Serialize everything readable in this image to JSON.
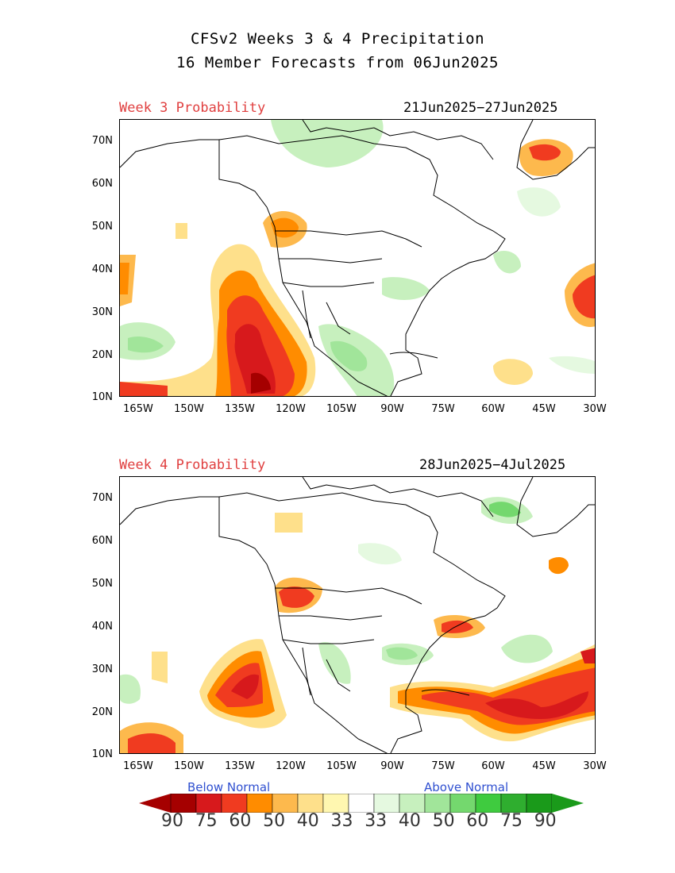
{
  "title": {
    "line1": "CFSv2 Weeks 3 & 4 Precipitation",
    "line2": "16 Member Forecasts from 06Jun2025"
  },
  "panels": [
    {
      "label": "Week 3 Probability",
      "dates": "21Jun2025−27Jun2025"
    },
    {
      "label": "Week 4 Probability",
      "dates": "28Jun2025−4Jul2025"
    }
  ],
  "axes": {
    "lat_labels": [
      "70N",
      "60N",
      "50N",
      "40N",
      "30N",
      "20N",
      "10N"
    ],
    "lon_labels": [
      "165W",
      "150W",
      "135W",
      "120W",
      "105W",
      "90W",
      "75W",
      "60W",
      "45W",
      "30W"
    ]
  },
  "legend": {
    "below_label": "Below Normal",
    "above_label": "Above Normal",
    "values": [
      "90",
      "75",
      "60",
      "50",
      "40",
      "33",
      "33",
      "40",
      "50",
      "60",
      "75",
      "90"
    ],
    "colors": [
      "#a50000",
      "#d7191c",
      "#f03b20",
      "#ff8c00",
      "#fdb94d",
      "#fee08b",
      "#fff7b0",
      "#ffffff",
      "#e5f9e0",
      "#c7f0be",
      "#a1e59a",
      "#74d86e",
      "#3fcb3f",
      "#2fae2f",
      "#1a9a1a"
    ],
    "arrow_left_color": "#a50000",
    "arrow_right_color": "#1a9a1a"
  }
}
